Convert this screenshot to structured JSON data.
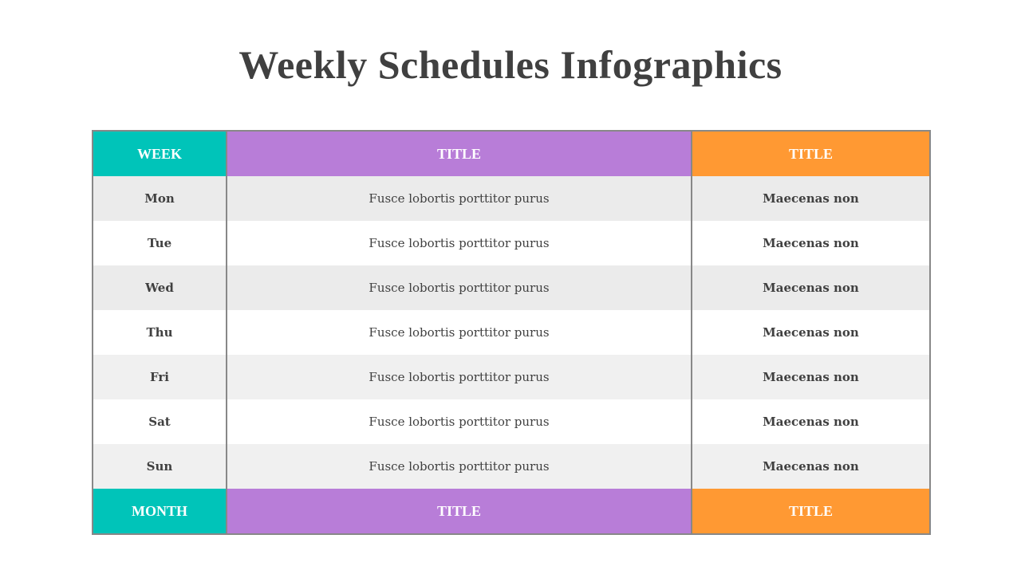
{
  "title": "Weekly Schedules Infographics",
  "colors": {
    "teal": "#00c4b9",
    "purple": "#b87dd8",
    "orange": "#ff9933",
    "row_gray": "#ebebeb",
    "row_light": "#f0f0f0"
  },
  "header": [
    "WEEK",
    "TITLE",
    "TITLE"
  ],
  "rows": [
    {
      "day": "Mon",
      "desc": "Fusce lobortis porttitor purus",
      "note": "Maecenas non"
    },
    {
      "day": "Tue",
      "desc": "Fusce lobortis porttitor purus",
      "note": "Maecenas non"
    },
    {
      "day": "Wed",
      "desc": "Fusce lobortis porttitor purus",
      "note": "Maecenas non"
    },
    {
      "day": "Thu",
      "desc": "Fusce lobortis porttitor purus",
      "note": "Maecenas non"
    },
    {
      "day": "Fri",
      "desc": "Fusce lobortis porttitor purus",
      "note": "Maecenas non"
    },
    {
      "day": "Sat",
      "desc": "Fusce lobortis porttitor purus",
      "note": "Maecenas non"
    },
    {
      "day": "Sun",
      "desc": "Fusce lobortis porttitor purus",
      "note": "Maecenas non"
    }
  ],
  "footer": [
    "MONTH",
    "TITLE",
    "TITLE"
  ]
}
